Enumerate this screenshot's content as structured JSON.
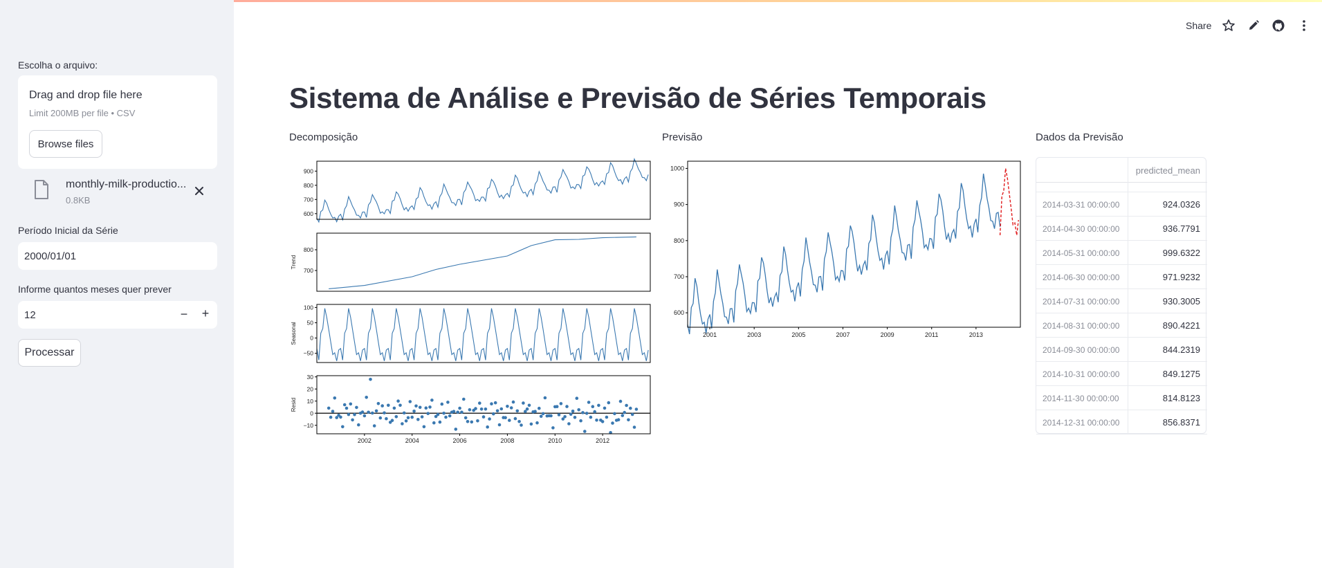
{
  "header": {
    "share_label": "Share",
    "icons": [
      "star-icon",
      "pencil-icon",
      "github-icon",
      "kebab-menu-icon"
    ]
  },
  "sidebar": {
    "file_label": "Escolha o arquivo:",
    "uploader": {
      "title": "Drag and drop file here",
      "subtitle": "Limit 200MB per file • CSV",
      "browse_label": "Browse files"
    },
    "file": {
      "name": "monthly-milk-productio...",
      "size": "0.8KB",
      "icon": "file-icon"
    },
    "start_label": "Período Inicial da Série",
    "start_value": "2000/01/01",
    "months_label": "Informe quantos meses quer prever",
    "months_value": "12",
    "minus_label": "−",
    "plus_label": "+",
    "process_label": "Processar"
  },
  "main": {
    "title": "Sistema de Análise e Previsão de Séries Temporais",
    "decomp_title": "Decomposição",
    "forecast_title": "Previsão",
    "table_title": "Dados da Previsão"
  },
  "table": {
    "columns": [
      "",
      "predicted_mean"
    ],
    "rows": [
      {
        "date": "2014-03-31 00:00:00",
        "value": "924.0326"
      },
      {
        "date": "2014-04-30 00:00:00",
        "value": "936.7791"
      },
      {
        "date": "2014-05-31 00:00:00",
        "value": "999.6322"
      },
      {
        "date": "2014-06-30 00:00:00",
        "value": "971.9232"
      },
      {
        "date": "2014-07-31 00:00:00",
        "value": "930.3005"
      },
      {
        "date": "2014-08-31 00:00:00",
        "value": "890.4221"
      },
      {
        "date": "2014-09-30 00:00:00",
        "value": "844.2319"
      },
      {
        "date": "2014-10-31 00:00:00",
        "value": "849.1275"
      },
      {
        "date": "2014-11-30 00:00:00",
        "value": "814.8123"
      },
      {
        "date": "2014-12-31 00:00:00",
        "value": "856.8371"
      }
    ]
  },
  "chart_data": [
    {
      "type": "line",
      "panel": "observed",
      "ylabel": "",
      "ylim": [
        560,
        970
      ],
      "yticks": [
        "600",
        "700",
        "800",
        "900"
      ],
      "series_color": "#3a78b0",
      "x_start": "2000-01",
      "months": 168,
      "trend_start": 598,
      "trend_slope": 1.84,
      "amplitude": 60
    },
    {
      "type": "line",
      "panel": "trend",
      "ylabel": "Trend",
      "ylim": [
        600,
        880
      ],
      "yticks": [
        "700",
        "800"
      ],
      "series_color": "#3a78b0",
      "x": [
        "2000-07",
        "2002-01",
        "2004-01",
        "2005-01",
        "2006-01",
        "2008-01",
        "2009-01",
        "2010-01",
        "2011-01",
        "2012-01",
        "2013-06"
      ],
      "values": [
        612,
        628,
        670,
        705,
        730,
        770,
        820,
        848,
        850,
        858,
        862
      ]
    },
    {
      "type": "line",
      "panel": "seasonal",
      "ylabel": "Seasonal",
      "ylim": [
        -80,
        110
      ],
      "yticks": [
        "100",
        "50",
        "0",
        "−50"
      ],
      "series_color": "#3a78b0",
      "pattern": [
        -34,
        -72,
        16,
        31,
        97,
        68,
        28,
        -13,
        -54,
        -48,
        -75,
        -39
      ]
    },
    {
      "type": "scatter",
      "panel": "resid",
      "ylabel": "Resid",
      "ylim": [
        -17,
        31
      ],
      "yticks": [
        "30",
        "20",
        "10",
        "0",
        "−10"
      ],
      "xticks": [
        "2002",
        "2004",
        "2006",
        "2008",
        "2010",
        "2012"
      ],
      "series_color": "#3a78b0"
    },
    {
      "type": "line",
      "panel": "forecast",
      "ylim": [
        560,
        1020
      ],
      "yticks": [
        "1000",
        "900",
        "800",
        "700",
        "600"
      ],
      "xticks": [
        "2001",
        "2003",
        "2005",
        "2007",
        "2009",
        "2011",
        "2013"
      ],
      "series": [
        {
          "color": "#3a78b0",
          "style": "solid",
          "x_start": "2000-01",
          "months": 170
        },
        {
          "color": "#e0191b",
          "style": "dashed",
          "x": [
            "2014-02",
            "2014-03",
            "2014-04",
            "2014-05",
            "2014-06",
            "2014-07",
            "2014-08",
            "2014-09",
            "2014-10",
            "2014-11",
            "2014-12"
          ],
          "values": [
            815,
            924,
            937,
            1000,
            972,
            930,
            890,
            844,
            849,
            815,
            857
          ]
        }
      ]
    }
  ]
}
